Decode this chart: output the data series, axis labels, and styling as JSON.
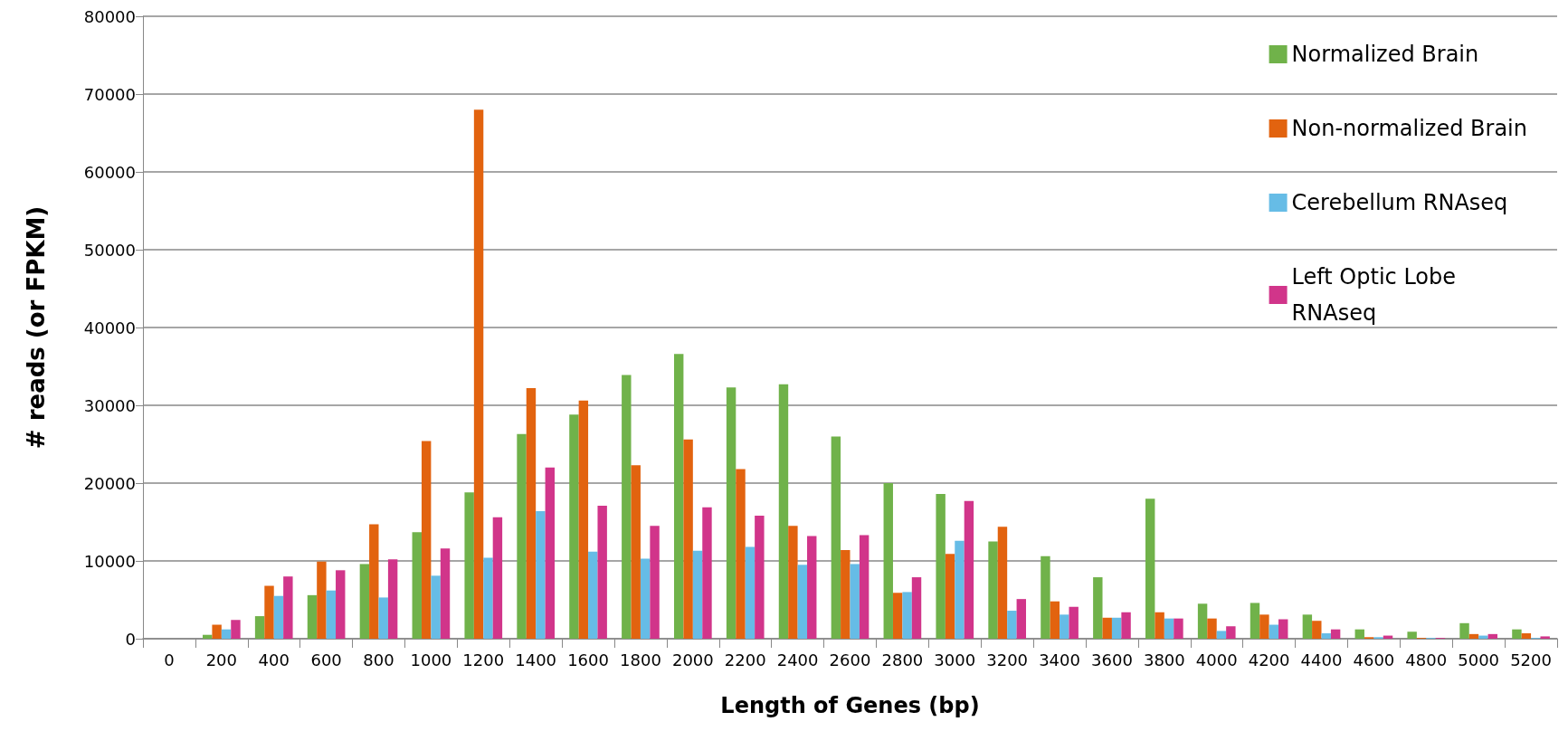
{
  "chart_data": {
    "type": "bar",
    "xlabel": "Length of Genes (bp)",
    "ylabel": "# reads (or FPKM)",
    "categories": [
      "0",
      "200",
      "400",
      "600",
      "800",
      "1000",
      "1200",
      "1400",
      "1600",
      "1800",
      "2000",
      "2200",
      "2400",
      "2600",
      "2800",
      "3000",
      "3200",
      "3400",
      "3600",
      "3800",
      "4000",
      "4200",
      "4400",
      "4600",
      "4800",
      "5000",
      "5200"
    ],
    "series": [
      {
        "name": "Normalized Brain",
        "color": "#70b24a",
        "values": [
          0,
          500,
          2900,
          5600,
          9600,
          13700,
          18800,
          26300,
          28800,
          33900,
          36600,
          32300,
          32700,
          26000,
          20000,
          18600,
          12500,
          10600,
          7900,
          18000,
          4500,
          4600,
          3100,
          1200,
          900,
          2000,
          1200
        ]
      },
      {
        "name": "Non-normalized Brain",
        "color": "#e2630f",
        "values": [
          0,
          1800,
          6800,
          9900,
          14700,
          25400,
          68000,
          32200,
          30600,
          22300,
          25600,
          21800,
          14500,
          11400,
          5900,
          10900,
          14400,
          4800,
          2700,
          3400,
          2600,
          3100,
          2300,
          200,
          100,
          600,
          700
        ]
      },
      {
        "name": "Cerebellum RNAseq",
        "color": "#66bce6",
        "values": [
          0,
          1200,
          5500,
          6200,
          5300,
          8100,
          10400,
          16400,
          11200,
          10300,
          11300,
          11800,
          9500,
          9600,
          6000,
          12600,
          3600,
          3100,
          2700,
          2600,
          1000,
          1800,
          700,
          200,
          100,
          400,
          100
        ]
      },
      {
        "name": "Left Optic Lobe\nRNAseq",
        "color": "#d1358a",
        "values": [
          0,
          2400,
          8000,
          8800,
          10200,
          11600,
          15600,
          22000,
          17100,
          14500,
          16900,
          15800,
          13200,
          13300,
          7900,
          17700,
          5100,
          4100,
          3400,
          2600,
          1600,
          2500,
          1200,
          400,
          100,
          600,
          300
        ]
      }
    ],
    "ylim": [
      0,
      80000
    ],
    "yticks": [
      0,
      10000,
      20000,
      30000,
      40000,
      50000,
      60000,
      70000,
      80000
    ],
    "grid": "y",
    "legend": "top right"
  }
}
